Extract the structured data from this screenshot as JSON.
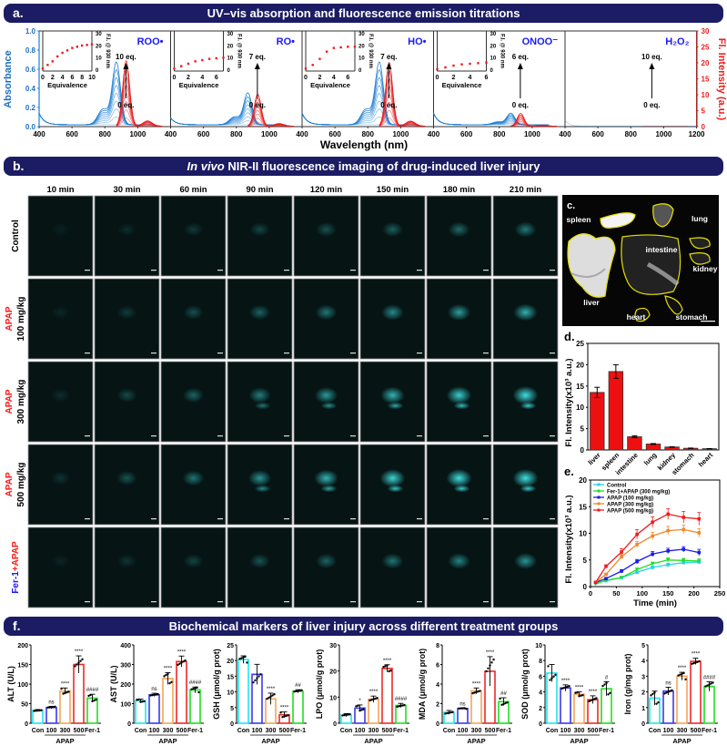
{
  "banners": {
    "a": {
      "letter": "a.",
      "title": "UV–vis absorption and fluorescence emission titrations"
    },
    "b": {
      "letter": "b.",
      "title_italic": "In vivo",
      "title_rest": " NIR-II fluorescence imaging of drug-induced liver injury"
    },
    "f": {
      "letter": "f.",
      "title": "Biochemical markers of liver injury across different treatment groups"
    }
  },
  "colors": {
    "banner": "#1c1c64",
    "absorbance": "#1e7fd6",
    "fluorescence": "#ee1c1c",
    "label_blue": "#1a1aff",
    "label_red": "#ff1a1a"
  },
  "chart_data": [
    {
      "id": "a",
      "type": "line",
      "xlabel": "Wavelength (nm)",
      "ylabel_left": "Absorbance",
      "ylabel_right": "Fl. Intensity (a.u.)",
      "xlim": [
        400,
        1200
      ],
      "ylim_left": [
        0,
        1.0
      ],
      "ylim_right": [
        0,
        30
      ],
      "x_ticks": [
        "400",
        "600",
        "800",
        "1000"
      ],
      "x_ticks_last": [
        "400",
        "600",
        "800",
        "1000",
        "1200"
      ],
      "y_ticks_left": [
        "0.0",
        "0.2",
        "0.4",
        "0.6",
        "0.8",
        "1.0"
      ],
      "y_ticks_right": [
        "0",
        "5",
        "10",
        "15",
        "20",
        "25",
        "30"
      ],
      "panels": [
        {
          "analyte": "ROO•",
          "max_eq": "10 eq.",
          "min_eq": "0 eq.",
          "abs_peak_nm": 870,
          "abs_peak": 0.65,
          "fl_peak_nm": 930,
          "fl_peak": 20.5,
          "inset": {
            "xlabel": "Equivalence",
            "ylabel": "F.I. @ 930 nm",
            "x_ticks": [
              "0",
              "2",
              "4",
              "6",
              "8",
              "10"
            ],
            "y_ticks": [
              "0",
              "10",
              "20",
              "30"
            ],
            "x": [
              0,
              1,
              2,
              3,
              4,
              5,
              6,
              7,
              8,
              9,
              10
            ],
            "y": [
              2,
              5,
              8,
              12,
              15,
              17,
              19,
              20,
              21,
              21.5,
              22
            ]
          }
        },
        {
          "analyte": "RO•",
          "max_eq": "7 eq.",
          "min_eq": "0 eq.",
          "abs_peak_nm": 870,
          "abs_peak": 0.33,
          "fl_peak_nm": 930,
          "fl_peak": 10,
          "inset": {
            "xlabel": "Equivalence",
            "ylabel": "F.I. @ 930 nm",
            "x_ticks": [
              "0",
              "2",
              "4",
              "6"
            ],
            "y_ticks": [
              "0",
              "10",
              "20",
              "30"
            ],
            "x": [
              0,
              1,
              2,
              3,
              4,
              5,
              6,
              7
            ],
            "y": [
              2,
              4,
              6,
              8,
              9,
              10,
              10.5,
              11
            ]
          }
        },
        {
          "analyte": "HO•",
          "max_eq": "7 eq.",
          "min_eq": "0 eq.",
          "abs_peak_nm": 870,
          "abs_peak": 0.65,
          "fl_peak_nm": 930,
          "fl_peak": 20,
          "inset": {
            "xlabel": "Equivalence",
            "ylabel": "F.I. @ 930 nm",
            "x_ticks": [
              "0",
              "2",
              "4",
              "6"
            ],
            "y_ticks": [
              "0",
              "10",
              "20",
              "30"
            ],
            "x": [
              0,
              1,
              2,
              3,
              4,
              5,
              6,
              7
            ],
            "y": [
              2,
              5,
              10,
              16,
              19,
              19.5,
              20,
              20
            ]
          }
        },
        {
          "analyte": "ONOO⁻",
          "max_eq": "6 eq.",
          "min_eq": "0 eq.",
          "abs_peak_nm": 870,
          "abs_peak": 0.12,
          "fl_peak_nm": 930,
          "fl_peak": 4,
          "inset": {
            "xlabel": "Equivalence",
            "ylabel": "F.I. @ 930 nm",
            "x_ticks": [
              "0",
              "2",
              "4",
              "6"
            ],
            "y_ticks": [
              "0",
              "10",
              "20",
              "30"
            ],
            "x": [
              0,
              1,
              2,
              3,
              4,
              5,
              6
            ],
            "y": [
              1.5,
              3,
              4.5,
              5.5,
              6,
              6.5,
              7
            ]
          }
        },
        {
          "analyte": "H₂O₂",
          "max_eq": "10 eq.",
          "min_eq": "0 eq.",
          "abs_peak_nm": 870,
          "abs_peak": 0.0,
          "fl_peak_nm": 930,
          "fl_peak": 0.6,
          "inset": null
        }
      ]
    },
    {
      "id": "d",
      "type": "bar",
      "ylabel": "Fl. Intensity(x10³ a.u.)",
      "ylim": [
        0,
        25
      ],
      "y_ticks": [
        "0",
        "5",
        "10",
        "15",
        "20",
        "25"
      ],
      "categories": [
        "liver",
        "spleen",
        "intestine",
        "lung",
        "kidney",
        "stomach",
        "heart"
      ],
      "values": [
        13.5,
        18.4,
        3.1,
        1.4,
        0.7,
        0.4,
        0.3
      ],
      "errors": [
        1.2,
        1.6,
        0.2,
        0.1,
        0.05,
        0.05,
        0.03
      ]
    },
    {
      "id": "e",
      "type": "line",
      "xlabel": "Time (min)",
      "ylabel": "Fl. Intensity(x10³ a.u.)",
      "xlim": [
        0,
        250
      ],
      "ylim": [
        0,
        20
      ],
      "x_ticks": [
        "0",
        "50",
        "100",
        "150",
        "200",
        "250"
      ],
      "y_ticks": [
        "0",
        "5",
        "10",
        "15",
        "20"
      ],
      "legend_position": "top-left",
      "x": [
        10,
        30,
        60,
        90,
        120,
        150,
        180,
        210
      ],
      "series": [
        {
          "name": "Control",
          "color": "#22d3ee",
          "marker": "square",
          "values": [
            0.7,
            1.1,
            1.7,
            2.7,
            3.6,
            4.1,
            4.5,
            4.6
          ],
          "errors": [
            0.1,
            0.1,
            0.2,
            0.2,
            0.3,
            0.3,
            0.3,
            0.3
          ]
        },
        {
          "name": "Fer-1+APAP (300 mg/kg)",
          "color": "#22dd22",
          "marker": "triangle-down",
          "values": [
            0.5,
            1.2,
            1.7,
            3.2,
            4.3,
            5.0,
            4.9,
            4.8
          ],
          "errors": [
            0.1,
            0.1,
            0.2,
            0.3,
            0.3,
            0.4,
            0.4,
            0.4
          ]
        },
        {
          "name": "APAP (100 mg/kg)",
          "color": "#1a1aee",
          "marker": "square",
          "values": [
            0.8,
            1.5,
            2.9,
            4.7,
            6.1,
            6.7,
            7.0,
            6.4
          ],
          "errors": [
            0.1,
            0.2,
            0.3,
            0.4,
            0.5,
            0.5,
            0.5,
            0.6
          ]
        },
        {
          "name": "APAP (300 mg/kg)",
          "color": "#f0882a",
          "marker": "square",
          "values": [
            0.8,
            2.3,
            5.6,
            7.9,
            9.5,
            10.5,
            10.7,
            10.1
          ],
          "errors": [
            0.1,
            0.2,
            0.4,
            0.6,
            0.7,
            0.8,
            0.8,
            0.8
          ]
        },
        {
          "name": "APAP (500 mg/kg)",
          "color": "#ee1c1c",
          "marker": "square",
          "values": [
            0.8,
            3.8,
            6.5,
            9.8,
            12.1,
            13.6,
            13.0,
            12.7
          ],
          "errors": [
            0.1,
            0.3,
            0.6,
            0.9,
            1.0,
            1.0,
            1.1,
            1.2
          ]
        }
      ]
    },
    {
      "id": "f",
      "type": "bar",
      "categories": [
        "Con",
        "100",
        "300",
        "500",
        "Fer-1"
      ],
      "group_label": "APAP",
      "bar_colors": [
        "#22e5ee",
        "#3a3aee",
        "#f5a55a",
        "#ee2a2a",
        "#22dd22"
      ],
      "charts": [
        {
          "ylabel": "ALT (U/L)",
          "ylim": [
            0,
            200
          ],
          "y_ticks": [
            "0",
            "50",
            "100",
            "150",
            "200"
          ],
          "values": [
            33,
            40,
            82,
            150,
            64
          ],
          "errors": [
            2,
            3,
            8,
            22,
            10
          ],
          "annotations": [
            "",
            "ns",
            "****",
            "****",
            "####"
          ]
        },
        {
          "ylabel": "AST (U/L)",
          "ylim": [
            0,
            400
          ],
          "y_ticks": [
            "0",
            "100",
            "200",
            "300",
            "400"
          ],
          "values": [
            115,
            145,
            228,
            315,
            170
          ],
          "errors": [
            8,
            8,
            30,
            28,
            15
          ],
          "annotations": [
            "",
            "ns",
            "****",
            "****",
            "####"
          ]
        },
        {
          "ylabel": "GSH (μmol/g prot)",
          "ylim": [
            0,
            25
          ],
          "y_ticks": [
            "0",
            "5",
            "10",
            "15",
            "20",
            "25"
          ],
          "values": [
            20.3,
            15.6,
            7.8,
            2.7,
            10.2
          ],
          "errors": [
            1.2,
            3.2,
            1.8,
            0.9,
            0.5
          ],
          "annotations": [
            "",
            "",
            "****",
            "****",
            "##"
          ]
        },
        {
          "ylabel": "LPO (μmol/g prot)",
          "ylim": [
            0,
            30
          ],
          "y_ticks": [
            "0",
            "10",
            "20",
            "30"
          ],
          "values": [
            3.1,
            5.8,
            9.2,
            21,
            6.8
          ],
          "errors": [
            0.6,
            1.2,
            1.2,
            1.4,
            0.8
          ],
          "annotations": [
            "",
            "*",
            "****",
            "****",
            "####"
          ]
        },
        {
          "ylabel": "MDA (μmol/g prot)",
          "ylim": [
            0,
            8
          ],
          "y_ticks": [
            "0",
            "2",
            "4",
            "6",
            "8"
          ],
          "values": [
            1.1,
            1.5,
            3.3,
            5.3,
            2.2
          ],
          "errors": [
            0.2,
            0.05,
            0.3,
            1.5,
            0.4
          ],
          "annotations": [
            "",
            "ns",
            "****",
            "****",
            "##"
          ]
        },
        {
          "ylabel": "SOD (μmol/g prot)",
          "ylim": [
            0,
            10
          ],
          "y_ticks": [
            "0",
            "2",
            "4",
            "6",
            "8",
            "10"
          ],
          "values": [
            6.4,
            4.5,
            3.7,
            3.0,
            4.4
          ],
          "errors": [
            1.1,
            0.4,
            0.3,
            0.5,
            0.9
          ],
          "annotations": [
            "",
            "****",
            "****",
            "****",
            "#"
          ]
        },
        {
          "ylabel": "Iron (g/mg prot)",
          "ylim": [
            0,
            5
          ],
          "y_ticks": [
            "0",
            "1",
            "2",
            "3",
            "4",
            "5"
          ],
          "values": [
            1.6,
            2.05,
            3.0,
            3.95,
            2.35
          ],
          "errors": [
            0.45,
            0.25,
            0.25,
            0.2,
            0.3
          ],
          "annotations": [
            "",
            "ns",
            "****",
            "****",
            "####"
          ]
        }
      ]
    }
  ],
  "imaging": {
    "time_points": [
      "10 min",
      "30 min",
      "60 min",
      "90 min",
      "120 min",
      "150 min",
      "180 min",
      "210 min"
    ],
    "rows": [
      {
        "line1": "",
        "line1b": "",
        "line2": "Control"
      },
      {
        "line1": "APAP",
        "line1b": "",
        "line2": "100 mg/kg"
      },
      {
        "line1": "APAP",
        "line1b": "",
        "line2": "300 mg/kg"
      },
      {
        "line1": "APAP",
        "line1b": "",
        "line2": "500 mg/kg"
      },
      {
        "line1": "+APAP",
        "line1b": "Fer-1",
        "line2": ""
      }
    ]
  },
  "panel_c": {
    "letter": "c.",
    "organs": [
      "spleen",
      "lung",
      "intestine",
      "kidney",
      "liver",
      "heart",
      "stomach"
    ]
  },
  "panel_labels": {
    "d": "d.",
    "e": "e."
  }
}
